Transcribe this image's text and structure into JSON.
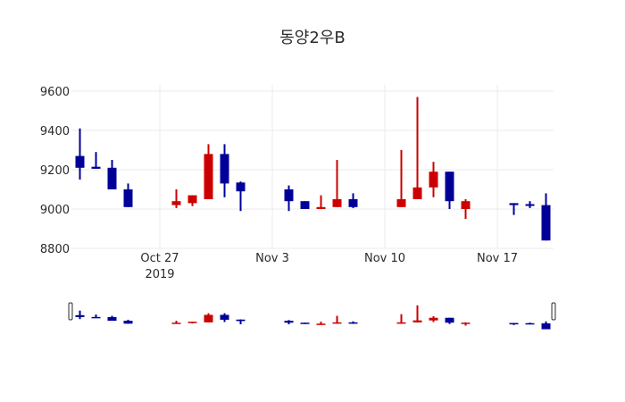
{
  "chart_data": {
    "type": "candlestick",
    "title": "동양2우B",
    "xlabel": "",
    "ylabel": "",
    "ylim": [
      8800,
      9620
    ],
    "y_ticks": [
      9600,
      9400,
      9200,
      9000,
      8800
    ],
    "x_ticks": [
      {
        "date": "2019-10-27",
        "label": "Oct 27",
        "sublabel": "2019"
      },
      {
        "date": "2019-11-03",
        "label": "Nov 3",
        "sublabel": ""
      },
      {
        "date": "2019-11-10",
        "label": "Nov 10",
        "sublabel": ""
      },
      {
        "date": "2019-11-17",
        "label": "Nov 17",
        "sublabel": ""
      }
    ],
    "x_range": [
      "2019-10-21T12:00",
      "2019-11-20T12:00"
    ],
    "grid": true,
    "legend": false,
    "range_slider": true,
    "colors": {
      "increasing": "#cc0000",
      "decreasing": "#000099"
    },
    "candles": [
      {
        "date": "2019-10-22",
        "open": 9270,
        "high": 9410,
        "low": 9150,
        "close": 9210
      },
      {
        "date": "2019-10-23",
        "open": 9215,
        "high": 9290,
        "low": 9205,
        "close": 9205
      },
      {
        "date": "2019-10-24",
        "open": 9210,
        "high": 9250,
        "low": 9100,
        "close": 9100
      },
      {
        "date": "2019-10-25",
        "open": 9100,
        "high": 9130,
        "low": 9010,
        "close": 9010
      },
      {
        "date": "2019-10-28",
        "open": 9020,
        "high": 9100,
        "low": 9005,
        "close": 9040
      },
      {
        "date": "2019-10-29",
        "open": 9030,
        "high": 9070,
        "low": 9015,
        "close": 9070
      },
      {
        "date": "2019-10-30",
        "open": 9050,
        "high": 9330,
        "low": 9050,
        "close": 9280
      },
      {
        "date": "2019-10-31",
        "open": 9280,
        "high": 9330,
        "low": 9060,
        "close": 9130
      },
      {
        "date": "2019-11-01",
        "open": 9135,
        "high": 9140,
        "low": 8990,
        "close": 9090
      },
      {
        "date": "2019-11-04",
        "open": 9100,
        "high": 9120,
        "low": 8990,
        "close": 9040
      },
      {
        "date": "2019-11-05",
        "open": 9040,
        "high": 9040,
        "low": 9000,
        "close": 9000
      },
      {
        "date": "2019-11-06",
        "open": 9000,
        "high": 9070,
        "low": 9000,
        "close": 9010
      },
      {
        "date": "2019-11-07",
        "open": 9010,
        "high": 9250,
        "low": 9010,
        "close": 9050
      },
      {
        "date": "2019-11-08",
        "open": 9050,
        "high": 9080,
        "low": 9005,
        "close": 9010
      },
      {
        "date": "2019-11-11",
        "open": 9010,
        "high": 9300,
        "low": 9010,
        "close": 9050
      },
      {
        "date": "2019-11-12",
        "open": 9050,
        "high": 9570,
        "low": 9050,
        "close": 9110
      },
      {
        "date": "2019-11-13",
        "open": 9110,
        "high": 9240,
        "low": 9060,
        "close": 9190
      },
      {
        "date": "2019-11-14",
        "open": 9190,
        "high": 9190,
        "low": 9000,
        "close": 9040
      },
      {
        "date": "2019-11-15",
        "open": 9000,
        "high": 9050,
        "low": 8950,
        "close": 9040
      },
      {
        "date": "2019-11-18",
        "open": 9030,
        "high": 9030,
        "low": 8970,
        "close": 9020
      },
      {
        "date": "2019-11-19",
        "open": 9025,
        "high": 9040,
        "low": 9005,
        "close": 9020
      },
      {
        "date": "2019-11-20",
        "open": 9020,
        "high": 9080,
        "low": 8840,
        "close": 8840
      }
    ]
  }
}
